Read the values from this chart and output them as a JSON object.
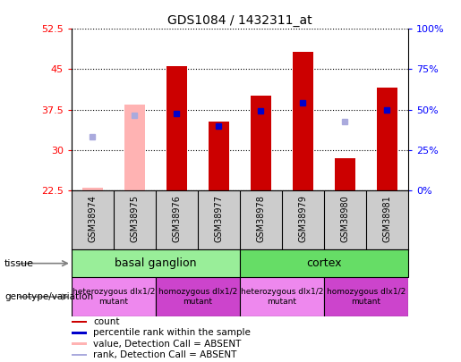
{
  "title": "GDS1084 / 1432311_at",
  "samples": [
    "GSM38974",
    "GSM38975",
    "GSM38976",
    "GSM38977",
    "GSM38978",
    "GSM38979",
    "GSM38980",
    "GSM38981"
  ],
  "ylim_left": [
    22.5,
    52.5
  ],
  "ylim_right": [
    0,
    100
  ],
  "yticks_left": [
    22.5,
    30,
    37.5,
    45,
    52.5
  ],
  "yticks_right": [
    0,
    25,
    50,
    75,
    100
  ],
  "ytick_labels_left": [
    "22.5",
    "30",
    "37.5",
    "45",
    "52.5"
  ],
  "ytick_labels_right": [
    "0%",
    "25%",
    "50%",
    "75%",
    "100%"
  ],
  "count_values": [
    null,
    null,
    45.5,
    35.2,
    40.0,
    48.2,
    28.5,
    41.5
  ],
  "count_absent_values": [
    23.0,
    38.5,
    null,
    null,
    null,
    null,
    null,
    null
  ],
  "rank_values": [
    null,
    null,
    36.8,
    34.5,
    37.2,
    38.8,
    null,
    37.5
  ],
  "rank_absent_values": [
    32.5,
    36.5,
    null,
    null,
    null,
    null,
    35.2,
    null
  ],
  "count_color": "#cc0000",
  "count_absent_color": "#ffb3b3",
  "rank_color": "#0000cc",
  "rank_absent_color": "#aaaadd",
  "bar_width": 0.5,
  "tissue_basal_color": "#99ee99",
  "tissue_cortex_color": "#66dd66",
  "geno_het_color": "#ee88ee",
  "geno_hom_color": "#cc44cc",
  "sample_bg_color": "#cccccc",
  "legend_items": [
    {
      "color": "#cc0000",
      "label": "count"
    },
    {
      "color": "#0000cc",
      "label": "percentile rank within the sample"
    },
    {
      "color": "#ffb3b3",
      "label": "value, Detection Call = ABSENT"
    },
    {
      "color": "#aaaadd",
      "label": "rank, Detection Call = ABSENT"
    }
  ]
}
